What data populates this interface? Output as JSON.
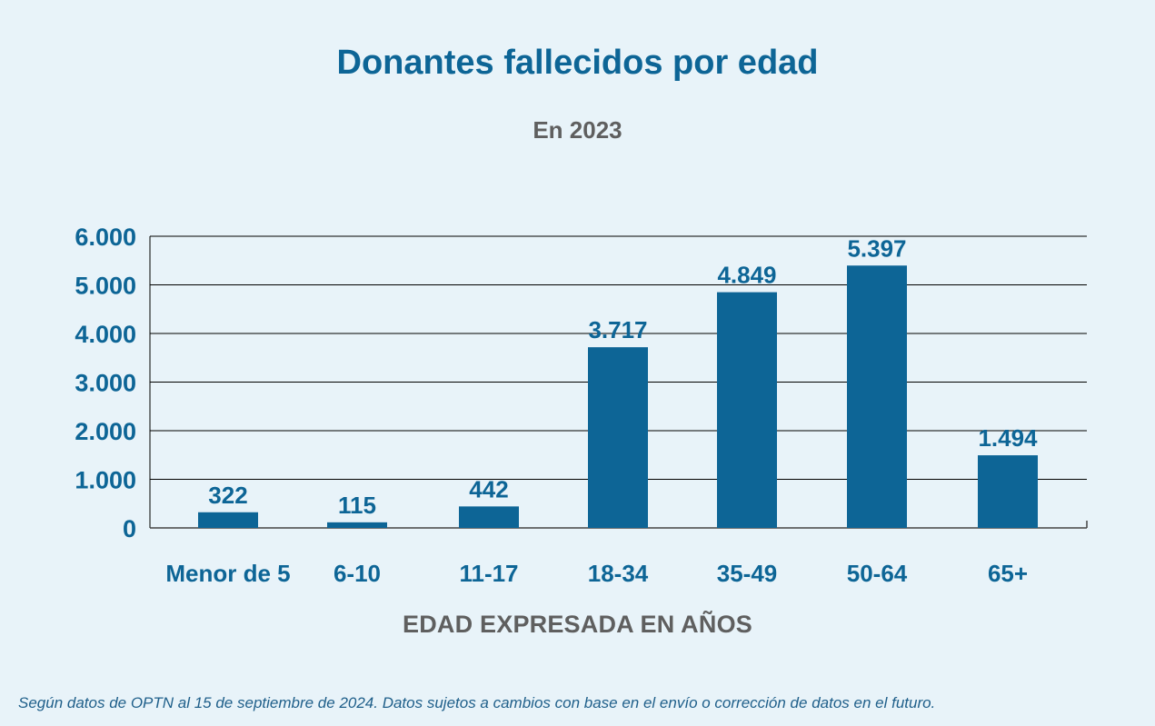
{
  "title": "Donantes fallecidos por edad",
  "subtitle": "En 2023",
  "footnote": "Según datos de OPTN al 15 de septiembre de 2024. Datos sujetos a cambios con base en el envío o corrección de datos en el futuro.",
  "colors": {
    "bar": "#0d6596",
    "title": "#0d6596",
    "axis_text": "#0d6596",
    "muted": "#5f5f5f",
    "background": "#e8f3f9",
    "grid": "#000000"
  },
  "chart_data": {
    "type": "bar",
    "title": "Donantes fallecidos por edad",
    "subtitle": "En 2023",
    "xlabel": "EDAD EXPRESADA EN AÑOS",
    "ylabel": "",
    "categories": [
      "Menor de 5",
      "6-10",
      "11-17",
      "18-34",
      "35-49",
      "50-64",
      "65+"
    ],
    "values": [
      322,
      115,
      442,
      3717,
      4849,
      5397,
      1494
    ],
    "value_labels": [
      "322",
      "115",
      "442",
      "3.717",
      "4.849",
      "5.397",
      "1.494"
    ],
    "ylim": [
      0,
      6000
    ],
    "yticks": [
      0,
      1000,
      2000,
      3000,
      4000,
      5000,
      6000
    ],
    "ytick_labels": [
      "0",
      "1.000",
      "2.000",
      "3.000",
      "4.000",
      "5.000",
      "6.000"
    ],
    "grid": true,
    "legend": "none"
  }
}
